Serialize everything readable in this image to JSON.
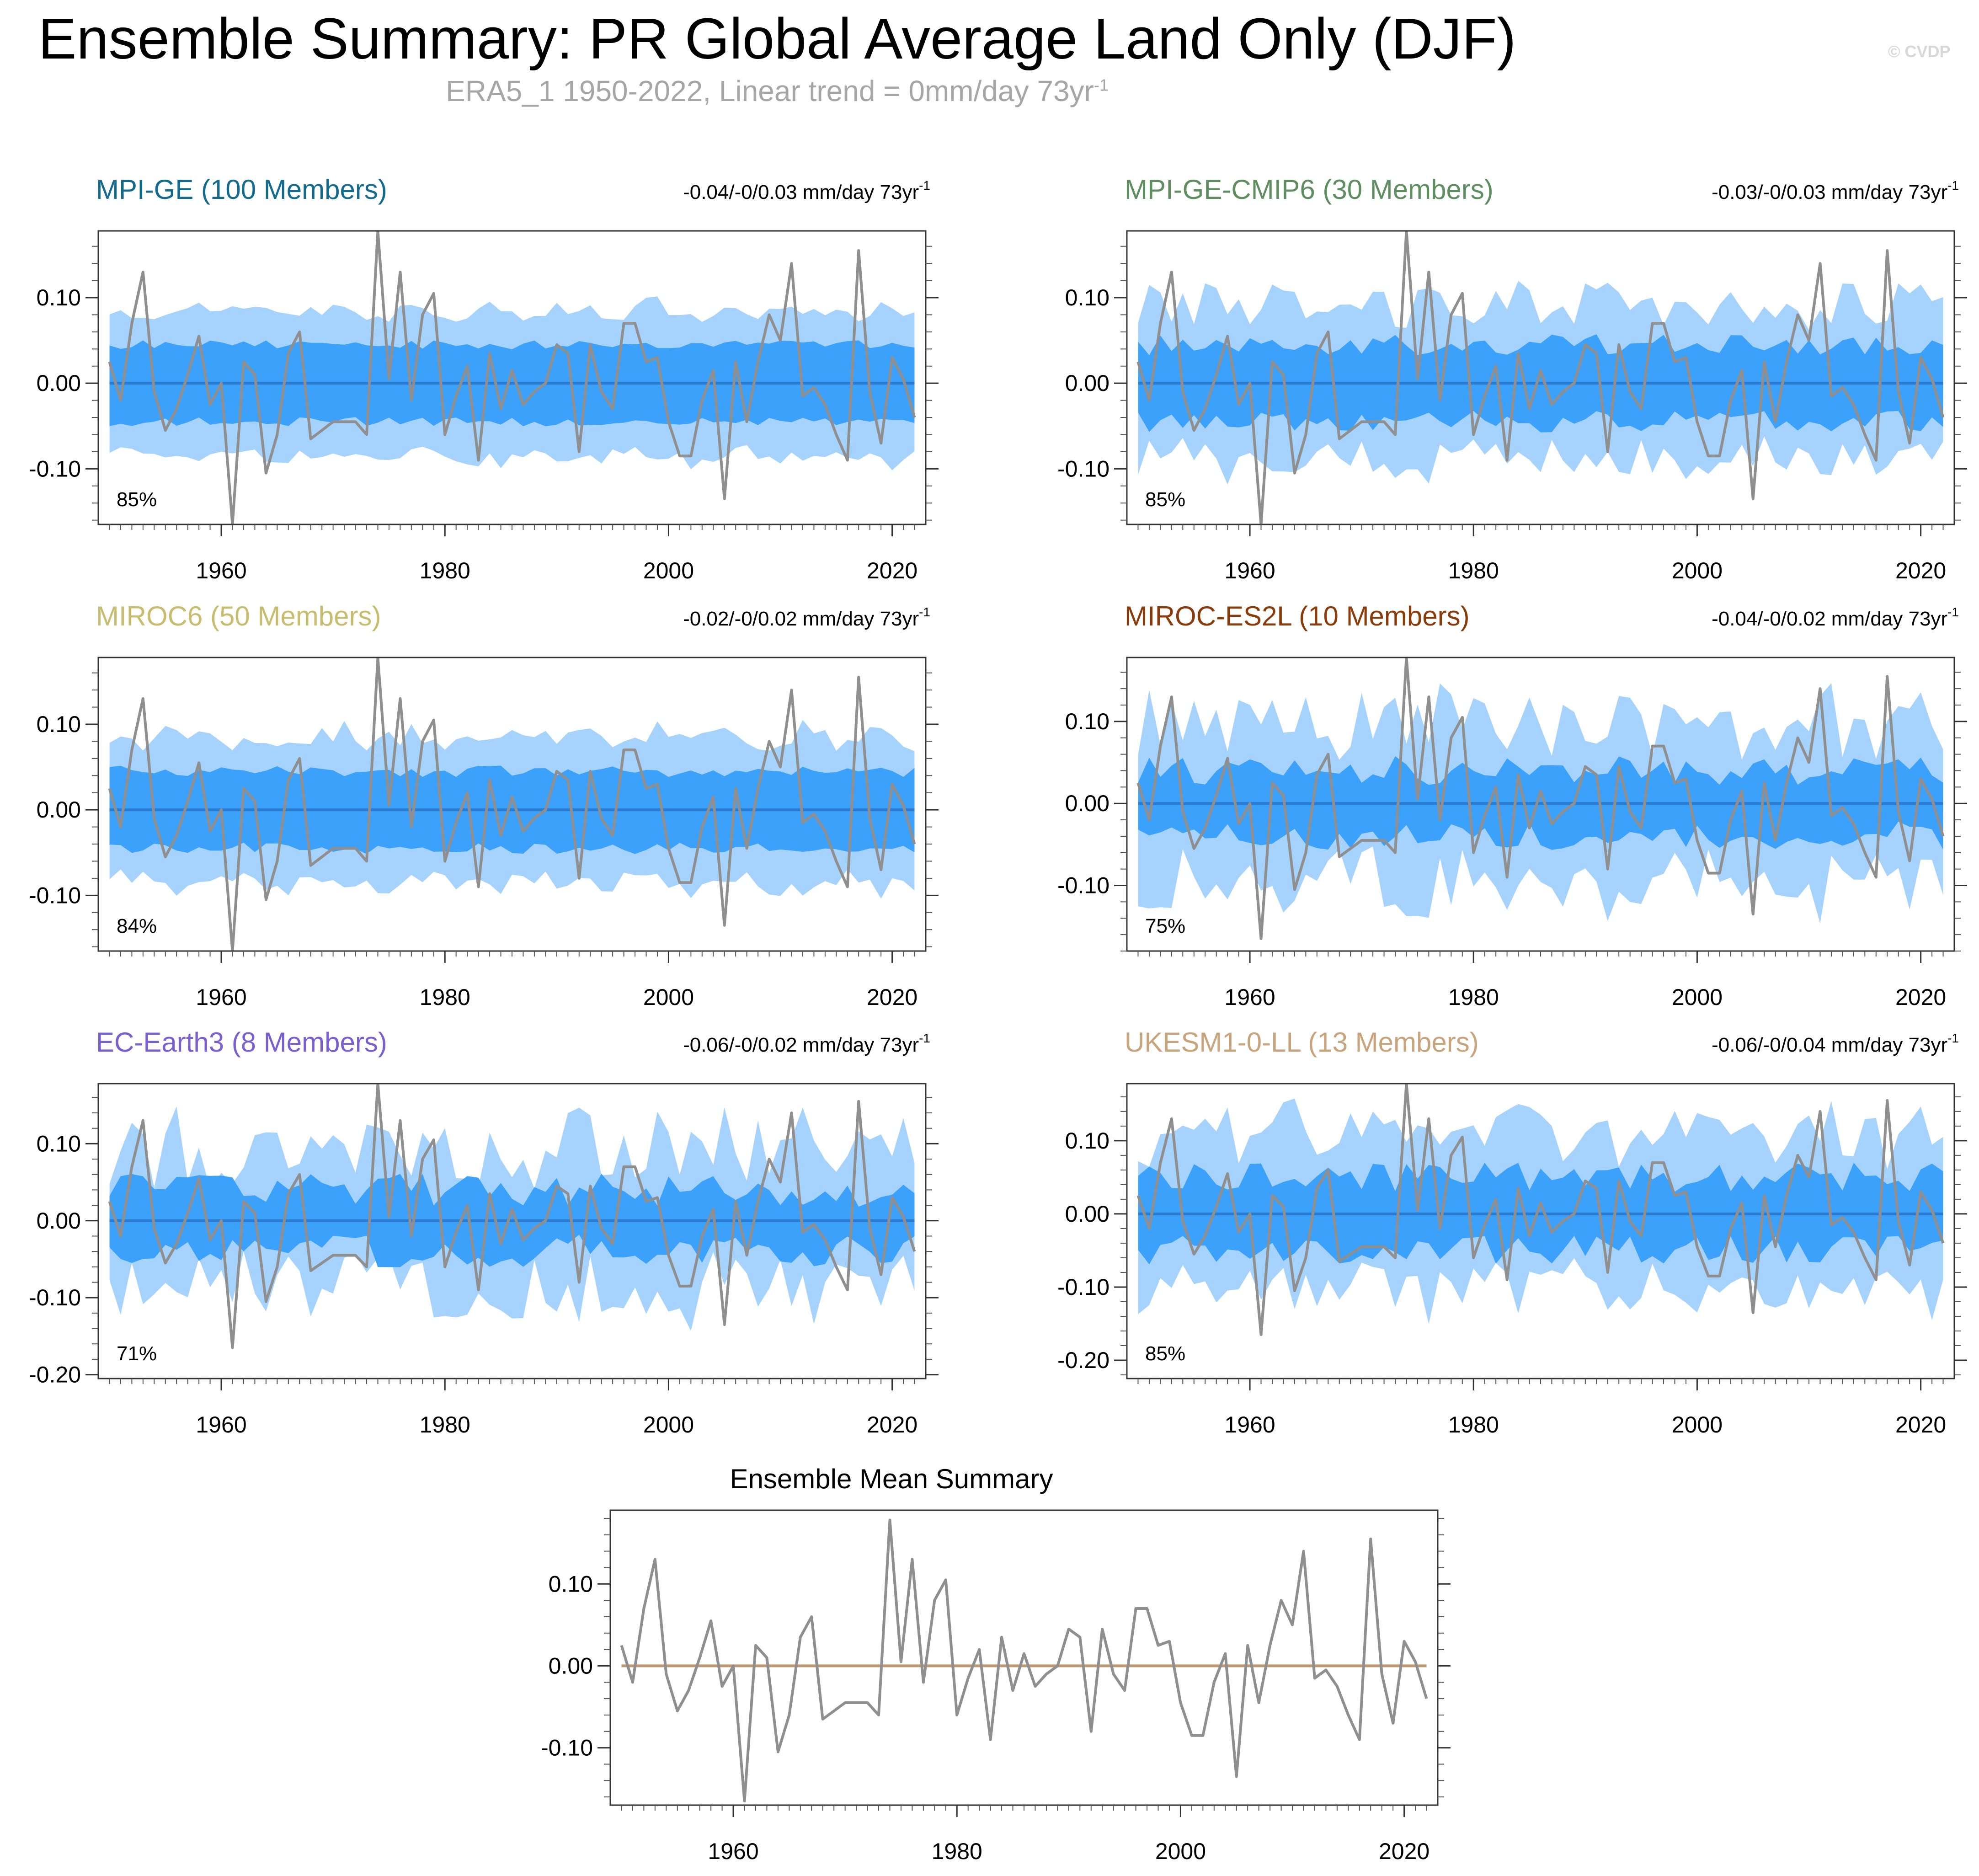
{
  "title": "Ensemble Summary: PR Global Average Land Only (DJF)",
  "subtitle_prefix": "ERA5_1 1950-2022, Linear trend = 0mm/day 73yr",
  "subtitle_sup": "-1",
  "copyright": "© CVDP",
  "colors": {
    "outer_band": "#a6d3fd",
    "inner_band": "#3ba1fb",
    "ensemble_mean": "#2b7bd0",
    "observations": "#8f8f8f",
    "mean_summary_zero": "#c09a72"
  },
  "chart_data": [
    {
      "type": "area",
      "title": "MPI-GE (100 Members)",
      "title_color": "#136a8f",
      "trend_text": "-0.04/-0/0.03 mm/day 73yr",
      "trend_sup": "-1",
      "percent_label": "85%",
      "ylim": [
        -0.165,
        0.178
      ],
      "yticks": [
        -0.1,
        0.0,
        0.1
      ],
      "ytick_labels": [
        "-0.10",
        "0.00",
        "0.10"
      ],
      "xlim": [
        1949,
        2023
      ],
      "xticks": [
        1960,
        1980,
        2000,
        2020
      ],
      "xtick_labels": [
        "1960",
        "1980",
        "2000",
        "2020"
      ],
      "band_outer": 0.085,
      "band_inner": 0.045,
      "variability": 0.12
    },
    {
      "type": "area",
      "title": "MPI-GE-CMIP6 (30 Members)",
      "title_color": "#5e8e60",
      "trend_text": "-0.03/-0/0.03 mm/day 73yr",
      "trend_sup": "-1",
      "percent_label": "85%",
      "ylim": [
        -0.165,
        0.178
      ],
      "yticks": [
        -0.1,
        0.0,
        0.1
      ],
      "ytick_labels": [
        "-0.10",
        "0.00",
        "0.10"
      ],
      "xlim": [
        1949,
        2023
      ],
      "xticks": [
        1960,
        1980,
        2000,
        2020
      ],
      "xtick_labels": [
        "1960",
        "1980",
        "2000",
        "2020"
      ],
      "band_outer": 0.09,
      "band_inner": 0.045,
      "variability": 0.28
    },
    {
      "type": "area",
      "title": "MIROC6 (50 Members)",
      "title_color": "#c8bd6e",
      "trend_text": "-0.02/-0/0.02 mm/day 73yr",
      "trend_sup": "-1",
      "percent_label": "84%",
      "ylim": [
        -0.165,
        0.178
      ],
      "yticks": [
        -0.1,
        0.0,
        0.1
      ],
      "ytick_labels": [
        "-0.10",
        "0.00",
        "0.10"
      ],
      "xlim": [
        1949,
        2023
      ],
      "xticks": [
        1960,
        1980,
        2000,
        2020
      ],
      "xtick_labels": [
        "1960",
        "1980",
        "2000",
        "2020"
      ],
      "band_outer": 0.085,
      "band_inner": 0.045,
      "variability": 0.15
    },
    {
      "type": "area",
      "title": "MIROC-ES2L (10 Members)",
      "title_color": "#8a3b0a",
      "trend_text": "-0.04/-0/0.02 mm/day 73yr",
      "trend_sup": "-1",
      "percent_label": "75%",
      "ylim": [
        -0.18,
        0.178
      ],
      "yticks": [
        -0.1,
        0.0,
        0.1
      ],
      "ytick_labels": [
        "-0.10",
        "0.00",
        "0.10"
      ],
      "xlim": [
        1949,
        2023
      ],
      "xticks": [
        1960,
        1980,
        2000,
        2020
      ],
      "xtick_labels": [
        "1960",
        "1980",
        "2000",
        "2020"
      ],
      "band_outer": 0.095,
      "band_inner": 0.04,
      "variability": 0.45
    },
    {
      "type": "area",
      "title": "EC-Earth3 (8 Members)",
      "title_color": "#7b5fd0",
      "trend_text": "-0.06/-0/0.02 mm/day 73yr",
      "trend_sup": "-1",
      "percent_label": "71%",
      "ylim": [
        -0.205,
        0.178
      ],
      "yticks": [
        -0.2,
        -0.1,
        0.0,
        0.1
      ],
      "ytick_labels": [
        "-0.20",
        "-0.10",
        "0.00",
        "0.10"
      ],
      "xlim": [
        1949,
        2023
      ],
      "xticks": [
        1960,
        1980,
        2000,
        2020
      ],
      "xtick_labels": [
        "1960",
        "1980",
        "2000",
        "2020"
      ],
      "band_outer": 0.09,
      "band_inner": 0.04,
      "variability": 0.55
    },
    {
      "type": "area",
      "title": "UKESM1-0-LL (13 Members)",
      "title_color": "#c8a47c",
      "trend_text": "-0.06/-0/0.04 mm/day 73yr",
      "trend_sup": "-1",
      "percent_label": "85%",
      "ylim": [
        -0.225,
        0.178
      ],
      "yticks": [
        -0.2,
        -0.1,
        0.0,
        0.1
      ],
      "ytick_labels": [
        "-0.20",
        "-0.10",
        "0.00",
        "0.10"
      ],
      "xlim": [
        1949,
        2023
      ],
      "xticks": [
        1960,
        1980,
        2000,
        2020
      ],
      "xtick_labels": [
        "1960",
        "1980",
        "2000",
        "2020"
      ],
      "band_outer": 0.105,
      "band_inner": 0.05,
      "variability": 0.4
    },
    {
      "type": "line",
      "title": "Ensemble Mean Summary",
      "title_color": "#000000",
      "ylim": [
        -0.17,
        0.19
      ],
      "yticks": [
        -0.1,
        0.0,
        0.1
      ],
      "ytick_labels": [
        "-0.10",
        "0.00",
        "0.10"
      ],
      "xlim": [
        1949,
        2023
      ],
      "xticks": [
        1960,
        1980,
        2000,
        2020
      ],
      "xtick_labels": [
        "1960",
        "1980",
        "2000",
        "2020"
      ]
    }
  ],
  "observations": {
    "x": [
      1950,
      1951,
      1952,
      1953,
      1954,
      1955,
      1956,
      1957,
      1958,
      1959,
      1960,
      1961,
      1962,
      1963,
      1964,
      1965,
      1966,
      1967,
      1968,
      1969,
      1970,
      1971,
      1972,
      1973,
      1974,
      1975,
      1976,
      1977,
      1978,
      1979,
      1980,
      1981,
      1982,
      1983,
      1984,
      1985,
      1986,
      1987,
      1988,
      1989,
      1990,
      1991,
      1992,
      1993,
      1994,
      1995,
      1996,
      1997,
      1998,
      1999,
      2000,
      2001,
      2002,
      2003,
      2004,
      2005,
      2006,
      2007,
      2008,
      2009,
      2010,
      2011,
      2012,
      2013,
      2014,
      2015,
      2016,
      2017,
      2018,
      2019,
      2020,
      2021,
      2022
    ],
    "y": [
      0.025,
      -0.02,
      0.07,
      0.13,
      -0.01,
      -0.055,
      -0.03,
      0.01,
      0.055,
      -0.025,
      0.0,
      -0.165,
      0.025,
      0.01,
      -0.105,
      -0.06,
      0.035,
      0.06,
      -0.065,
      -0.055,
      -0.045,
      -0.045,
      -0.045,
      -0.06,
      0.178,
      0.005,
      0.13,
      -0.02,
      0.08,
      0.105,
      -0.06,
      -0.015,
      0.02,
      -0.09,
      0.035,
      -0.03,
      0.015,
      -0.025,
      -0.01,
      0.0,
      0.045,
      0.035,
      -0.08,
      0.045,
      -0.01,
      -0.03,
      0.07,
      0.07,
      0.025,
      0.03,
      -0.045,
      -0.085,
      -0.085,
      -0.02,
      0.015,
      -0.135,
      0.025,
      -0.045,
      0.025,
      0.08,
      0.05,
      0.14,
      -0.015,
      -0.005,
      -0.025,
      -0.06,
      -0.09,
      0.155,
      -0.01,
      -0.07,
      0.03,
      0.005,
      -0.04
    ]
  }
}
